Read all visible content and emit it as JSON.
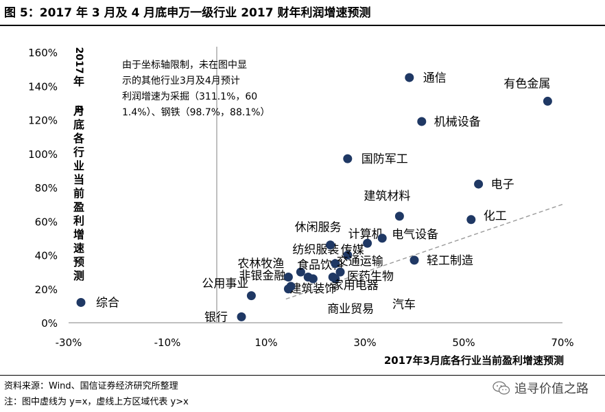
{
  "figure": {
    "title": "图 5：2017 年 3 月及 4 月底申万一级行业 2017 财年利润增速预测",
    "source": "资料来源：Wind、国信证券经济研究所整理",
    "note": "注：图中虚线为 y=x，虚线上方区域代表 y>x",
    "watermark": "追寻价值之路",
    "watermark_icon": "wechat-icon"
  },
  "chart_data": {
    "type": "scatter",
    "xlabel": "2017年3月底各行业当前盈利增速预测",
    "ylabel": "2017年4月底各行业当前盈利增速预测",
    "xlim": [
      -30,
      70
    ],
    "ylim": [
      0,
      160
    ],
    "xticks": [
      "-30%",
      "-10%",
      "10%",
      "30%",
      "50%",
      "70%"
    ],
    "yticks": [
      "0%",
      "20%",
      "40%",
      "60%",
      "80%",
      "100%",
      "120%",
      "140%",
      "160%"
    ],
    "annotation": "由于坐标轴限制，未在图中显示的其他行业3月及4月预计利润增速为采掘（311.1%，601.4%）、钢铁（98.7%，88.1%）",
    "reference_line": "y=x",
    "marker_color": "#1f3864",
    "points": [
      {
        "label": "综合",
        "x": -27.5,
        "y": 12
      },
      {
        "label": "银行",
        "x": 5,
        "y": 3.5
      },
      {
        "label": "非银金融",
        "x": 14.5,
        "y": 20
      },
      {
        "label": "公用事业",
        "x": 7,
        "y": 16
      },
      {
        "label": "农林牧渔",
        "x": 14.5,
        "y": 27
      },
      {
        "label": "纺织服装",
        "x": 17,
        "y": 30
      },
      {
        "label": "建筑装饰",
        "x": 19.5,
        "y": 26
      },
      {
        "label": "食品饮料",
        "x": 18.5,
        "y": 27
      },
      {
        "label": "休闲服务",
        "x": 23,
        "y": 46
      },
      {
        "label": "传媒",
        "x": 26.5,
        "y": 40
      },
      {
        "label": "计算机",
        "x": 30.5,
        "y": 47
      },
      {
        "label": "电气设备",
        "x": 33.5,
        "y": 50
      },
      {
        "label": "交通运输",
        "x": 24,
        "y": 35
      },
      {
        "label": "医药生物",
        "x": 25,
        "y": 30
      },
      {
        "label": "家用电器",
        "x": 24,
        "y": 26
      },
      {
        "label": "商业贸易",
        "x": 23.5,
        "y": 27
      },
      {
        "label": "汽车",
        "x": 15,
        "y": 21.5
      },
      {
        "label": "轻工制造",
        "x": 40,
        "y": 37
      },
      {
        "label": "建筑材料",
        "x": 37,
        "y": 63
      },
      {
        "label": "化工",
        "x": 51.5,
        "y": 61
      },
      {
        "label": "电子",
        "x": 53,
        "y": 82
      },
      {
        "label": "国防军工",
        "x": 26.5,
        "y": 97
      },
      {
        "label": "机械设备",
        "x": 41.5,
        "y": 119
      },
      {
        "label": "通信",
        "x": 39,
        "y": 145
      },
      {
        "label": "有色金属",
        "x": 67,
        "y": 131
      }
    ]
  }
}
